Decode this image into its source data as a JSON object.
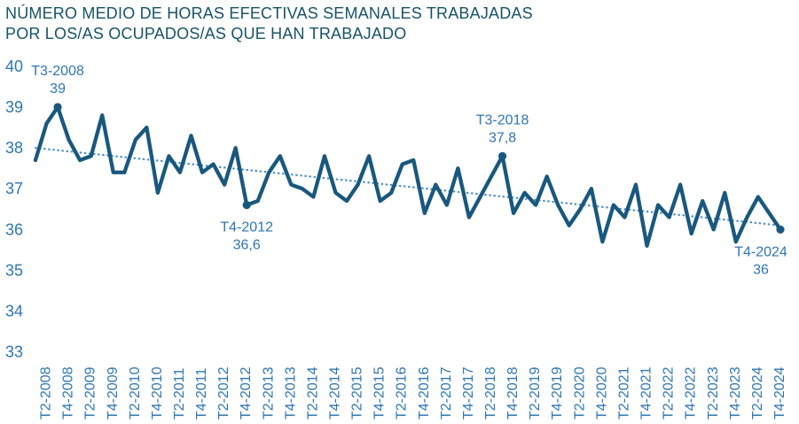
{
  "title": {
    "line1": "NÚMERO MEDIO DE HORAS EFECTIVAS SEMANALES TRABAJADAS",
    "line2": "POR LOS/AS OCUPADOS/AS QUE HAN TRABAJADO"
  },
  "colors": {
    "background": "#ffffff",
    "title_text": "#175468",
    "axis_labels": "#2e76b4",
    "series_line": "#19587e",
    "trend_line": "#4a8dc3",
    "annotation_text": "#2e76b4"
  },
  "chart_data": {
    "type": "line",
    "title": "NÚMERO MEDIO DE HORAS EFECTIVAS SEMANALES TRABAJADAS POR LOS/AS OCUPADOS/AS QUE HAN TRABAJADO",
    "ylim": [
      33,
      40
    ],
    "y_ticks": [
      40,
      39,
      38,
      37,
      36,
      35,
      34,
      33
    ],
    "grid": false,
    "legend": false,
    "x_tick_labels": [
      "T2-2008",
      "T4-2008",
      "T2-2009",
      "T4-2009",
      "T2-2010",
      "T4-2010",
      "T2-2011",
      "T4-2011",
      "T2-2012",
      "T4-2012",
      "T2-2013",
      "T4-2013",
      "T2-2014",
      "T4-2014",
      "T2-2015",
      "T4-2015",
      "T2-2016",
      "T4-2016",
      "T2-2017",
      "T4-2017",
      "T2-2018",
      "T4-2018",
      "T2-2019",
      "T4-2019",
      "T2-2020",
      "T4-2020",
      "T2-2021",
      "T4-2021",
      "T2-2022",
      "T4-2022",
      "T2-2023",
      "T4-2023",
      "T2-2024",
      "T4-2024"
    ],
    "quarters": [
      "T1-2008",
      "T2-2008",
      "T3-2008",
      "T4-2008",
      "T1-2009",
      "T2-2009",
      "T3-2009",
      "T4-2009",
      "T1-2010",
      "T2-2010",
      "T3-2010",
      "T4-2010",
      "T1-2011",
      "T2-2011",
      "T3-2011",
      "T4-2011",
      "T1-2012",
      "T2-2012",
      "T3-2012",
      "T4-2012",
      "T1-2013",
      "T2-2013",
      "T3-2013",
      "T4-2013",
      "T1-2014",
      "T2-2014",
      "T3-2014",
      "T4-2014",
      "T1-2015",
      "T2-2015",
      "T3-2015",
      "T4-2015",
      "T1-2016",
      "T2-2016",
      "T3-2016",
      "T4-2016",
      "T1-2017",
      "T2-2017",
      "T3-2017",
      "T4-2017",
      "T1-2018",
      "T2-2018",
      "T3-2018",
      "T4-2018",
      "T1-2019",
      "T2-2019",
      "T3-2019",
      "T4-2019",
      "T1-2020",
      "T2-2020",
      "T3-2020",
      "T4-2020",
      "T1-2021",
      "T2-2021",
      "T3-2021",
      "T4-2021",
      "T1-2022",
      "T2-2022",
      "T3-2022",
      "T4-2022",
      "T1-2023",
      "T2-2023",
      "T3-2023",
      "T4-2023",
      "T1-2024",
      "T2-2024",
      "T3-2024",
      "T4-2024"
    ],
    "values": [
      37.7,
      38.6,
      39.0,
      38.2,
      37.7,
      37.8,
      38.8,
      37.4,
      37.4,
      38.2,
      38.5,
      36.9,
      37.8,
      37.4,
      38.3,
      37.4,
      37.6,
      37.1,
      38.0,
      36.6,
      36.7,
      37.4,
      37.8,
      37.1,
      37.0,
      36.8,
      37.8,
      36.9,
      36.7,
      37.1,
      37.8,
      36.7,
      36.9,
      37.6,
      37.7,
      36.4,
      37.1,
      36.6,
      37.5,
      36.3,
      36.8,
      37.3,
      37.8,
      36.4,
      36.9,
      36.6,
      37.3,
      36.6,
      36.1,
      36.5,
      37.0,
      35.7,
      36.6,
      36.3,
      37.1,
      35.6,
      36.6,
      36.3,
      37.1,
      35.9,
      36.7,
      36.0,
      36.9,
      35.7,
      36.3,
      36.8,
      36.4,
      36.0
    ],
    "trend": {
      "style": "dotted",
      "start_value": 38.0,
      "end_value": 36.1
    },
    "annotations": [
      {
        "quarter": "T3-2008",
        "value": 39.0,
        "value_label": "39",
        "position": "above"
      },
      {
        "quarter": "T4-2012",
        "value": 36.6,
        "value_label": "36,6",
        "position": "below"
      },
      {
        "quarter": "T3-2018",
        "value": 37.8,
        "value_label": "37,8",
        "position": "above"
      },
      {
        "quarter": "T4-2024",
        "value": 36.0,
        "value_label": "36",
        "position": "below"
      }
    ]
  }
}
